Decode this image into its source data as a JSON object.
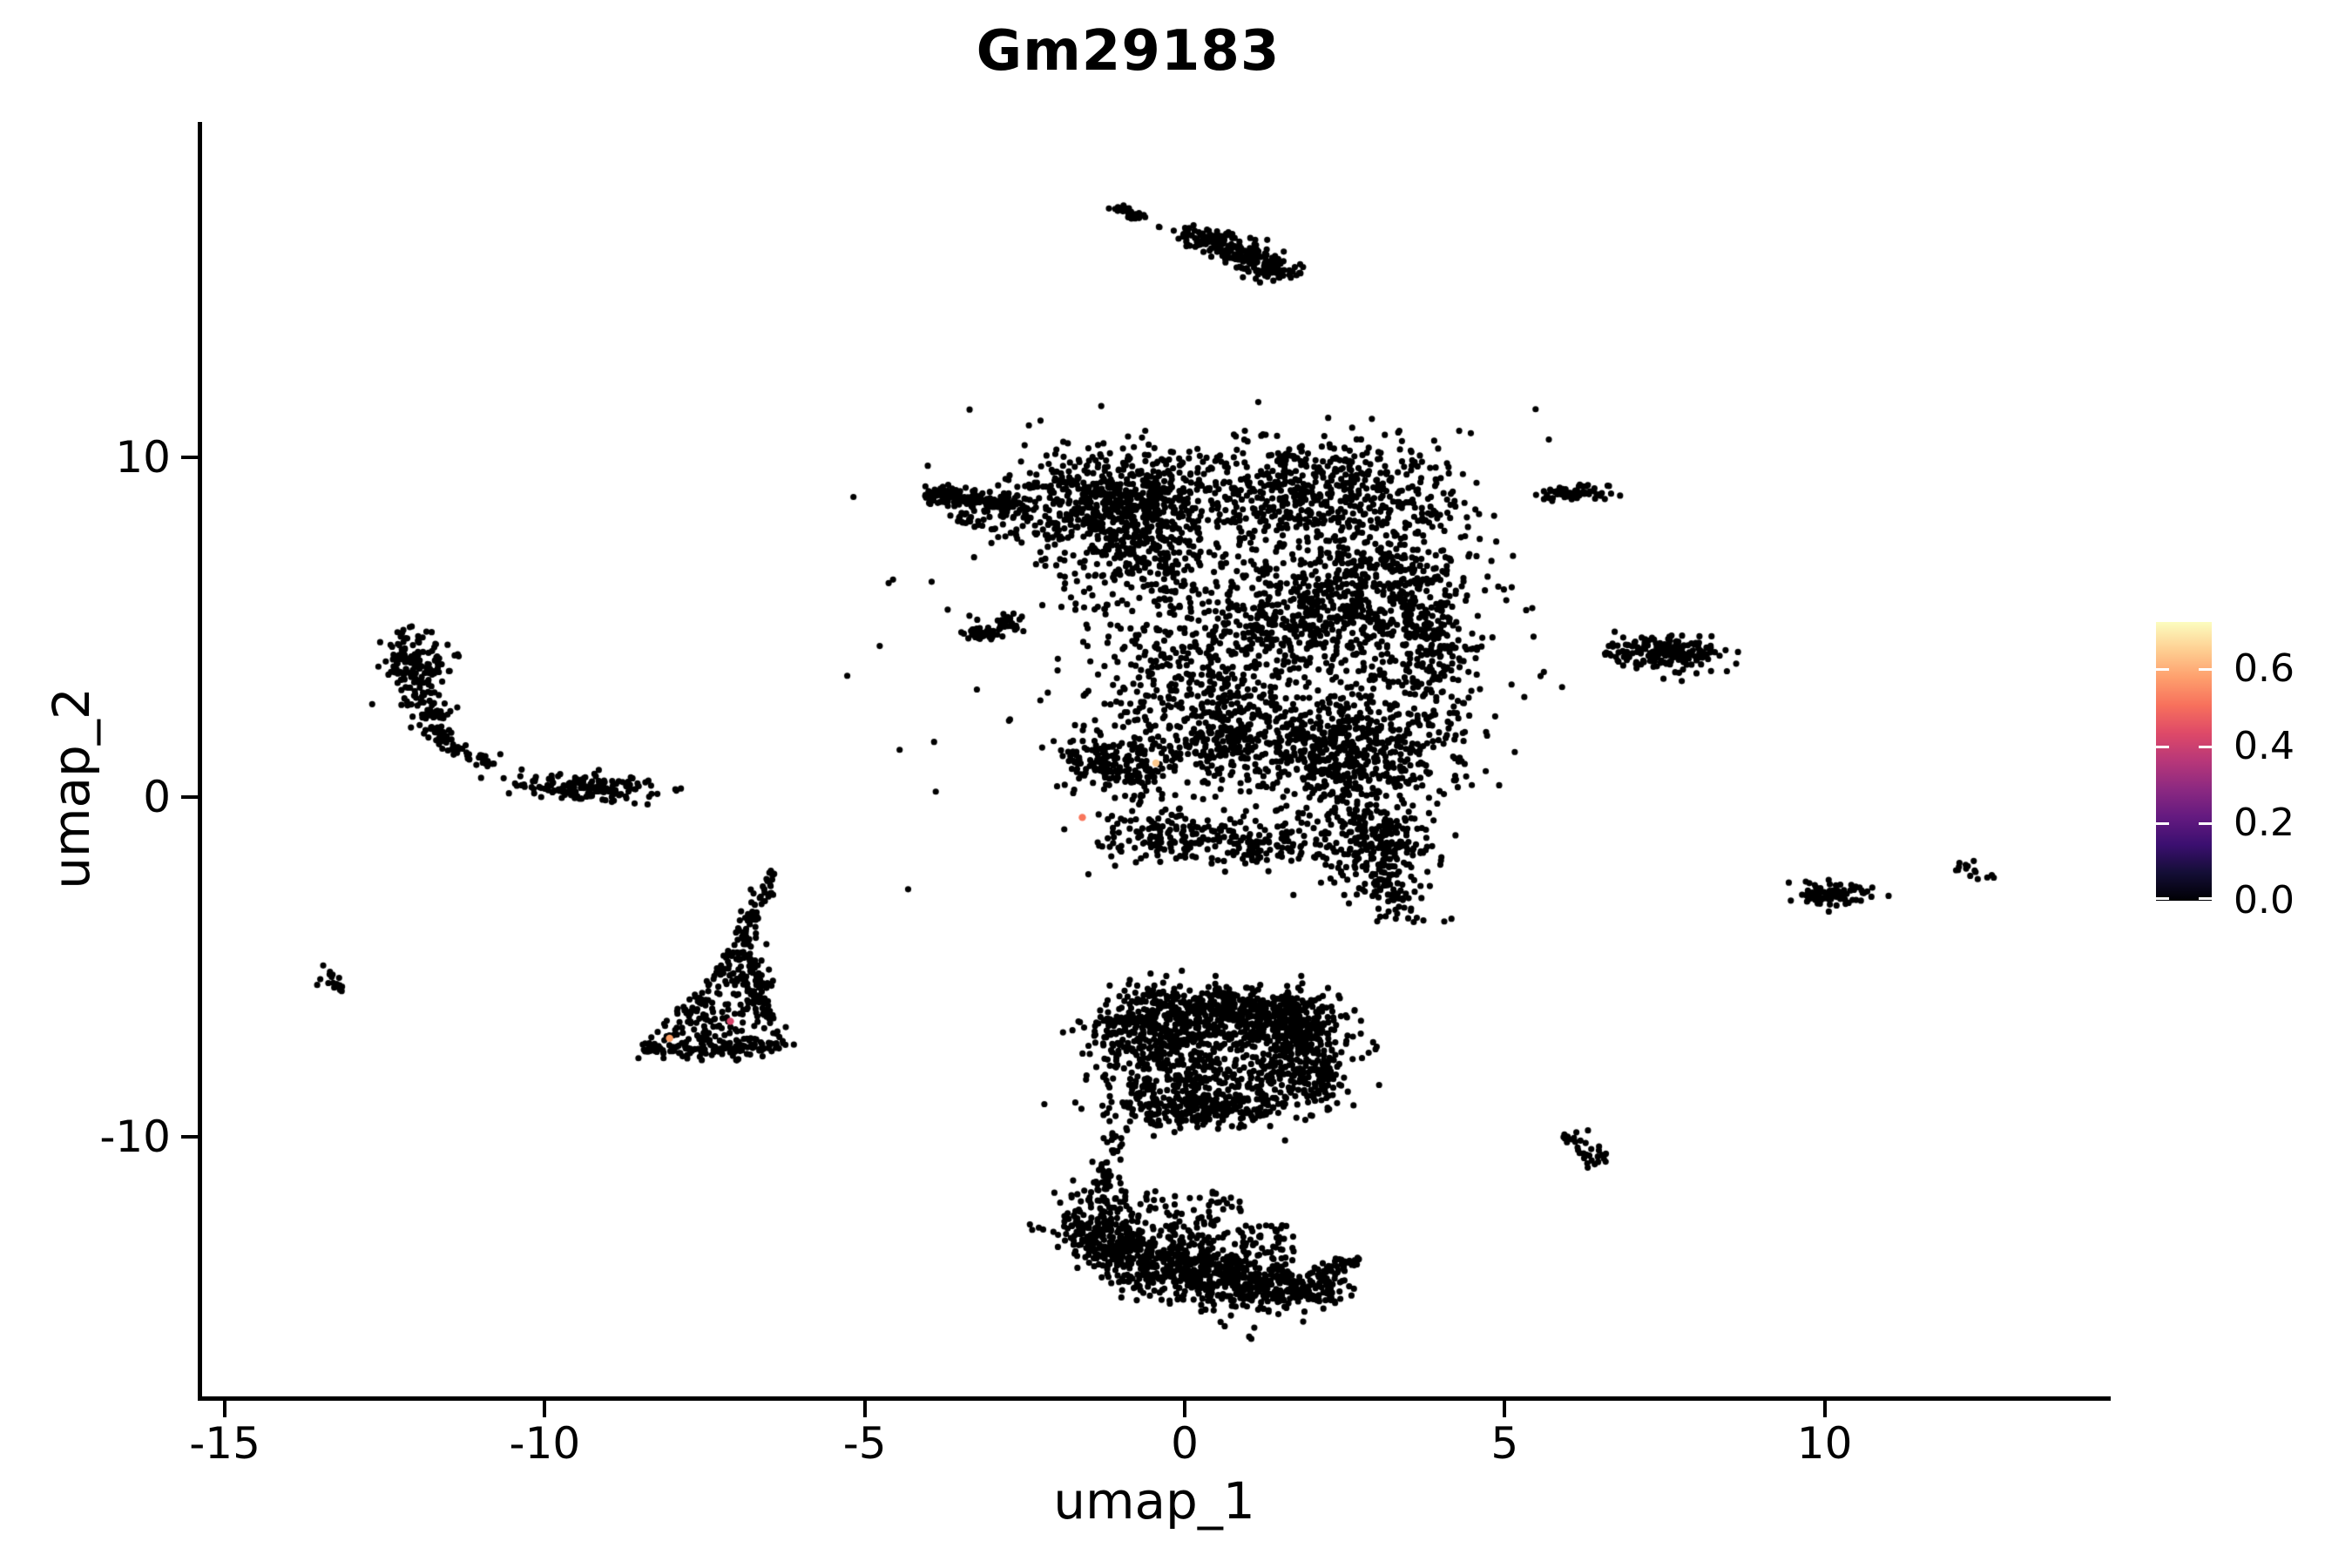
{
  "title": "Gm29183",
  "colors": {
    "background": "#ffffff",
    "point": "#000000",
    "axis": "#000000",
    "colorbar_gradient": [
      "#000004",
      "#140E36",
      "#3B0F70",
      "#641A80",
      "#8C2981",
      "#B73779",
      "#DE4968",
      "#F7705C",
      "#FE9F6D",
      "#FECF92",
      "#FCFDBF"
    ]
  },
  "chart_data": {
    "type": "scatter",
    "title": "Gm29183",
    "xlabel": "umap_1",
    "ylabel": "umap_2",
    "xlim": [
      -15.4,
      14.4
    ],
    "ylim": [
      -17.7,
      19.9
    ],
    "grid": false,
    "legend_position": "right",
    "point_radius_px": 3.6,
    "x_axis": {
      "label": "umap_1",
      "ticks": [
        {
          "value": -15,
          "label": "-15"
        },
        {
          "value": -10,
          "label": "-10"
        },
        {
          "value": -5,
          "label": "-5"
        },
        {
          "value": 0,
          "label": "0"
        },
        {
          "value": 5,
          "label": "5"
        },
        {
          "value": 10,
          "label": "10"
        }
      ]
    },
    "y_axis": {
      "label": "umap_2",
      "ticks": [
        {
          "value": 10,
          "label": "10"
        },
        {
          "value": 0,
          "label": "0"
        },
        {
          "value": -10,
          "label": "-10"
        }
      ]
    },
    "legend": {
      "colormap": "magma",
      "scale_max": 0.722,
      "ticks": [
        {
          "value": 0.6,
          "label": "0.6"
        },
        {
          "value": 0.4,
          "label": "0.4"
        },
        {
          "value": 0.2,
          "label": "0.2"
        },
        {
          "value": 0.0,
          "label": "0.0"
        }
      ]
    },
    "clusters": [
      {
        "type": "line",
        "x1": -1.05,
        "y1": 17.45,
        "x2": -0.6,
        "y2": 16.95,
        "w": 0.07,
        "n": 30
      },
      {
        "type": "line",
        "x1": -0.45,
        "y1": 16.8,
        "x2": 0.05,
        "y2": 16.5,
        "w": 0.04,
        "n": 5
      },
      {
        "type": "line",
        "x1": 0.05,
        "y1": 16.6,
        "x2": 0.8,
        "y2": 16.15,
        "w": 0.15,
        "n": 95
      },
      {
        "type": "line",
        "x1": 0.8,
        "y1": 16.15,
        "x2": 1.55,
        "y2": 15.35,
        "w": 0.17,
        "n": 115
      },
      {
        "type": "gauss",
        "cx": 0.95,
        "cy": 15.85,
        "sx": 0.28,
        "sy": 0.22,
        "n": 45
      },
      {
        "type": "line",
        "x1": -4.05,
        "y1": 8.95,
        "x2": -2.5,
        "y2": 8.55,
        "w": 0.14,
        "n": 165
      },
      {
        "type": "gauss",
        "cx": -3.35,
        "cy": 8.2,
        "sx": 0.3,
        "sy": 0.25,
        "n": 22
      },
      {
        "type": "gauss",
        "cx": -1.2,
        "cy": 8.8,
        "sx": 0.85,
        "sy": 0.75,
        "n": 560
      },
      {
        "type": "gauss",
        "cx": -0.8,
        "cy": 7.3,
        "sx": 0.7,
        "sy": 0.8,
        "n": 260
      },
      {
        "type": "line",
        "x1": -3.35,
        "y1": 4.75,
        "x2": -2.6,
        "y2": 5.2,
        "w": 0.11,
        "n": 75
      },
      {
        "type": "gauss",
        "cx": 2.0,
        "cy": 9.0,
        "sx": 1.1,
        "sy": 0.8,
        "n": 560
      },
      {
        "type": "gauss",
        "cx": 3.1,
        "cy": 6.0,
        "sx": 0.85,
        "sy": 1.3,
        "n": 530
      },
      {
        "type": "gauss",
        "cx": 3.9,
        "cy": 4.0,
        "sx": 0.35,
        "sy": 1.0,
        "n": 130
      },
      {
        "type": "gauss",
        "cx": 1.6,
        "cy": 5.3,
        "sx": 0.9,
        "sy": 1.0,
        "n": 300
      },
      {
        "type": "gauss",
        "cx": 0.2,
        "cy": 3.3,
        "sx": 0.8,
        "sy": 1.1,
        "n": 280
      },
      {
        "type": "gauss",
        "cx": 1.2,
        "cy": 1.6,
        "sx": 1.1,
        "sy": 0.8,
        "n": 430
      },
      {
        "type": "gauss",
        "cx": 2.7,
        "cy": 1.2,
        "sx": 0.7,
        "sy": 0.9,
        "n": 390
      },
      {
        "type": "gauss",
        "cx": 2.9,
        "cy": -1.2,
        "sx": 0.55,
        "sy": 0.75,
        "n": 200
      },
      {
        "type": "line",
        "x1": 2.9,
        "y1": -0.8,
        "x2": 3.35,
        "y2": -3.6,
        "w": 0.3,
        "n": 140
      },
      {
        "type": "gauss",
        "cx": 0.8,
        "cy": 5.0,
        "sx": 1.8,
        "sy": 2.2,
        "n": 260
      },
      {
        "type": "line",
        "x1": -1.9,
        "y1": 1.3,
        "x2": -0.3,
        "y2": 0.6,
        "w": 0.35,
        "n": 175
      },
      {
        "type": "line",
        "x1": -1.2,
        "y1": -1.0,
        "x2": 1.8,
        "y2": -1.4,
        "w": 0.38,
        "n": 265
      },
      {
        "type": "gauss",
        "cx": 0.2,
        "cy": 4.8,
        "sx": 2.7,
        "sy": 3.3,
        "n": 70
      },
      {
        "type": "gauss",
        "cx": -12.05,
        "cy": 3.9,
        "sx": 0.28,
        "sy": 0.42,
        "n": 135
      },
      {
        "type": "line",
        "x1": -12.0,
        "y1": 3.3,
        "x2": -11.75,
        "y2": 2.2,
        "w": 0.13,
        "n": 55
      },
      {
        "type": "curve",
        "p": [
          -11.75,
          2.2,
          -11.6,
          1.3,
          -10.85,
          1.05
        ],
        "w": 0.09,
        "n": 60
      },
      {
        "type": "gauss",
        "cx": -11.85,
        "cy": 2.6,
        "sx": 0.45,
        "sy": 0.5,
        "n": 8
      },
      {
        "type": "gauss",
        "cx": -9.35,
        "cy": 0.25,
        "sx": 0.5,
        "sy": 0.17,
        "n": 155
      },
      {
        "type": "gauss",
        "cx": -10.3,
        "cy": 0.55,
        "sx": 0.22,
        "sy": 0.18,
        "n": 8
      },
      {
        "type": "curve",
        "p": [
          -6.45,
          -2.15,
          -6.55,
          -3.2,
          -6.95,
          -4.1
        ],
        "w": 0.08,
        "n": 55
      },
      {
        "type": "tri",
        "v": [
          -6.85,
          -3.9,
          -8.55,
          -7.55,
          -6.3,
          -7.4
        ],
        "n": 260
      },
      {
        "type": "line",
        "x1": -8.5,
        "y1": -7.5,
        "x2": -6.4,
        "y2": -7.4,
        "w": 0.14,
        "n": 85
      },
      {
        "type": "line",
        "x1": -6.85,
        "y1": -4.0,
        "x2": -6.35,
        "y2": -7.3,
        "w": 0.13,
        "n": 55
      },
      {
        "type": "gauss",
        "cx": -13.3,
        "cy": -5.45,
        "sx": 0.17,
        "sy": 0.14,
        "n": 16
      },
      {
        "type": "gauss",
        "cx": 6.15,
        "cy": 8.95,
        "sx": 0.3,
        "sy": 0.11,
        "n": 60
      },
      {
        "type": "gauss",
        "cx": 7.55,
        "cy": 4.25,
        "sx": 0.42,
        "sy": 0.24,
        "n": 195
      },
      {
        "type": "line",
        "x1": 6.6,
        "y1": 4.1,
        "x2": 7.05,
        "y2": 4.3,
        "w": 0.1,
        "n": 9
      },
      {
        "type": "gauss",
        "cx": 10.05,
        "cy": -2.85,
        "sx": 0.32,
        "sy": 0.17,
        "n": 85
      },
      {
        "type": "gauss",
        "cx": 12.15,
        "cy": -2.05,
        "sx": 0.12,
        "sy": 0.08,
        "n": 9
      },
      {
        "type": "gauss",
        "cx": 12.5,
        "cy": -2.3,
        "sx": 0.1,
        "sy": 0.07,
        "n": 7
      },
      {
        "type": "line",
        "x1": 6.0,
        "y1": -9.9,
        "x2": 6.5,
        "y2": -10.7,
        "w": 0.11,
        "n": 32
      },
      {
        "type": "rect",
        "x0": -1.3,
        "y0": -9.4,
        "x1": 2.25,
        "y1": -5.95,
        "n": 330
      },
      {
        "type": "gauss",
        "cx": -0.45,
        "cy": -7.0,
        "sx": 0.55,
        "sy": 0.7,
        "n": 300
      },
      {
        "type": "gauss",
        "cx": 1.1,
        "cy": -6.5,
        "sx": 0.7,
        "sy": 0.4,
        "n": 260
      },
      {
        "type": "gauss",
        "cx": 1.75,
        "cy": -7.3,
        "sx": 0.45,
        "sy": 0.65,
        "n": 220
      },
      {
        "type": "gauss",
        "cx": 0.2,
        "cy": -8.7,
        "sx": 0.8,
        "sy": 0.45,
        "n": 220
      },
      {
        "type": "line",
        "x1": -0.9,
        "y1": -6.05,
        "x2": 2.0,
        "y2": -6.0,
        "w": 0.22,
        "n": 120
      },
      {
        "type": "line",
        "x1": 0.5,
        "y1": -5.55,
        "x2": 0.55,
        "y2": -5.95,
        "w": 0.06,
        "n": 10
      },
      {
        "type": "line",
        "x1": -0.7,
        "y1": -9.35,
        "x2": 1.3,
        "y2": -9.15,
        "w": 0.22,
        "n": 110
      },
      {
        "type": "gauss",
        "cx": 2.05,
        "cy": -8.1,
        "sx": 0.25,
        "sy": 0.7,
        "n": 90
      },
      {
        "type": "curve",
        "p": [
          -0.95,
          -9.7,
          -1.3,
          -10.6,
          -1.25,
          -11.4
        ],
        "w": 0.09,
        "n": 40
      },
      {
        "type": "gauss",
        "cx": -1.35,
        "cy": -11.9,
        "sx": 0.3,
        "sy": 0.35,
        "n": 45
      },
      {
        "type": "line",
        "x1": -1.7,
        "y1": -12.4,
        "x2": -1.0,
        "y2": -13.35,
        "w": 0.35,
        "n": 180
      },
      {
        "type": "line",
        "x1": -1.0,
        "y1": -13.35,
        "x2": 0.3,
        "y2": -14.1,
        "w": 0.45,
        "n": 280
      },
      {
        "type": "line",
        "x1": 0.3,
        "y1": -14.1,
        "x2": 1.6,
        "y2": -14.55,
        "w": 0.42,
        "n": 280
      },
      {
        "type": "line",
        "x1": 1.6,
        "y1": -14.55,
        "x2": 2.35,
        "y2": -14.35,
        "w": 0.28,
        "n": 110
      },
      {
        "type": "line",
        "x1": 2.1,
        "y1": -14.0,
        "x2": 2.62,
        "y2": -13.6,
        "w": 0.1,
        "n": 40
      },
      {
        "type": "rect",
        "x0": -1.2,
        "y0": -12.9,
        "x1": 0.9,
        "y1": -11.6,
        "n": 70
      },
      {
        "type": "rect",
        "x0": -1.3,
        "y0": -14.3,
        "x1": 1.8,
        "y1": -12.6,
        "n": 200
      }
    ],
    "highlight_points": [
      {
        "x": -1.6,
        "y": -0.6,
        "color": "#F8765C"
      },
      {
        "x": -0.45,
        "y": 1.0,
        "color": "#FEC98D"
      },
      {
        "x": -8.05,
        "y": -7.1,
        "color": "#FB9E64"
      },
      {
        "x": -7.1,
        "y": -6.6,
        "color": "#D6456C"
      }
    ]
  }
}
